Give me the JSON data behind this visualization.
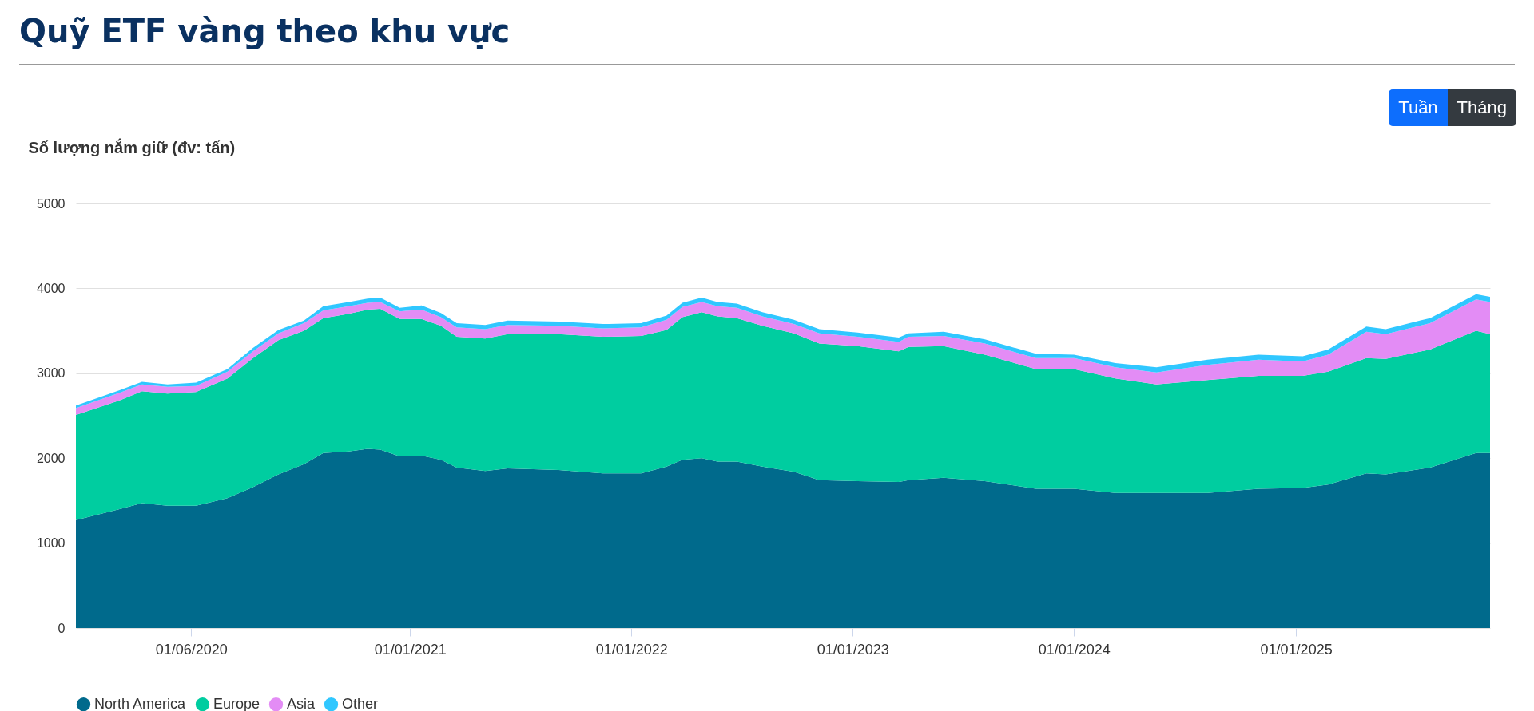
{
  "chart_data": {
    "type": "area",
    "title": "Quỹ ETF vàng theo khu vực",
    "ylabel": "Số lượng nắm giữ (đv: tấn)",
    "annotations": [
      "Tuần",
      "Tháng"
    ],
    "stacked": true,
    "grid": "y",
    "legend": "bottom",
    "x": [
      "2019-06-30",
      "2019-09-10",
      "2019-10-17",
      "2019-11-28",
      "2020-01-14",
      "2020-03-06",
      "2020-04-17",
      "2020-05-29",
      "2020-07-10",
      "2020-08-11",
      "2020-09-22",
      "2020-10-23",
      "2020-11-13",
      "2020-12-15",
      "2021-01-20",
      "2021-02-21",
      "2021-03-19",
      "2021-05-05",
      "2021-06-11",
      "2021-09-03",
      "2021-11-15",
      "2022-01-17",
      "2022-02-28",
      "2022-03-26",
      "2022-04-27",
      "2022-05-23",
      "2022-06-24",
      "2022-08-05",
      "2022-09-26",
      "2022-11-07",
      "2023-01-09",
      "2023-03-18",
      "2023-04-03",
      "2023-05-31",
      "2023-08-07",
      "2023-10-30",
      "2024-01-01",
      "2024-03-09",
      "2024-05-16",
      "2024-08-08",
      "2024-10-31",
      "2025-01-12",
      "2025-02-23",
      "2025-04-27",
      "2025-05-29",
      "2025-08-10",
      "2025-10-25",
      "2025-11-17"
    ],
    "series": [
      {
        "name": "North America",
        "color": "#006a8c",
        "values": [
          1270,
          1400,
          1470,
          1440,
          1440,
          1530,
          1660,
          1810,
          1930,
          2060,
          2080,
          2110,
          2100,
          2020,
          2030,
          1980,
          1890,
          1850,
          1880,
          1860,
          1820,
          1820,
          1900,
          1980,
          2000,
          1960,
          1960,
          1900,
          1840,
          1740,
          1730,
          1720,
          1740,
          1770,
          1730,
          1640,
          1640,
          1590,
          1590,
          1590,
          1640,
          1650,
          1690,
          1820,
          1810,
          1890,
          2060,
          2060
        ]
      },
      {
        "name": "Europe",
        "color": "#00cda0",
        "values": [
          1240,
          1280,
          1320,
          1320,
          1340,
          1410,
          1520,
          1580,
          1570,
          1590,
          1620,
          1640,
          1660,
          1620,
          1610,
          1580,
          1540,
          1560,
          1580,
          1600,
          1610,
          1620,
          1610,
          1680,
          1720,
          1710,
          1690,
          1660,
          1630,
          1610,
          1590,
          1540,
          1570,
          1550,
          1490,
          1410,
          1410,
          1350,
          1280,
          1330,
          1330,
          1320,
          1330,
          1360,
          1360,
          1390,
          1440,
          1400
        ]
      },
      {
        "name": "Asia",
        "color": "#e38cf5",
        "values": [
          80,
          90,
          80,
          80,
          70,
          80,
          80,
          80,
          90,
          90,
          90,
          80,
          80,
          90,
          110,
          100,
          110,
          110,
          110,
          100,
          100,
          100,
          120,
          120,
          120,
          120,
          120,
          110,
          110,
          120,
          110,
          110,
          120,
          120,
          130,
          130,
          130,
          130,
          140,
          180,
          190,
          170,
          200,
          310,
          290,
          310,
          370,
          380
        ]
      },
      {
        "name": "Other",
        "color": "#30c7ff",
        "values": [
          30,
          30,
          30,
          30,
          40,
          30,
          40,
          40,
          30,
          50,
          50,
          50,
          50,
          40,
          50,
          50,
          50,
          50,
          50,
          50,
          50,
          50,
          50,
          50,
          50,
          50,
          50,
          50,
          50,
          50,
          50,
          50,
          40,
          50,
          50,
          50,
          40,
          50,
          60,
          60,
          60,
          60,
          60,
          60,
          60,
          60,
          60,
          60
        ]
      }
    ],
    "xlim": [
      "2019-06-30",
      "2025-11-17"
    ],
    "xticks": [
      {
        "value": "2020-01-06",
        "label": "01/06/2020"
      },
      {
        "value": "2021-01-01",
        "label": "01/01/2021"
      },
      {
        "value": "2022-01-01",
        "label": "01/01/2022"
      },
      {
        "value": "2023-01-01",
        "label": "01/01/2023"
      },
      {
        "value": "2024-01-01",
        "label": "01/01/2024"
      },
      {
        "value": "2025-01-01",
        "label": "01/01/2025"
      }
    ],
    "ylim": [
      0,
      5000
    ],
    "yticks": [
      0,
      1000,
      2000,
      3000,
      4000,
      5000
    ]
  }
}
